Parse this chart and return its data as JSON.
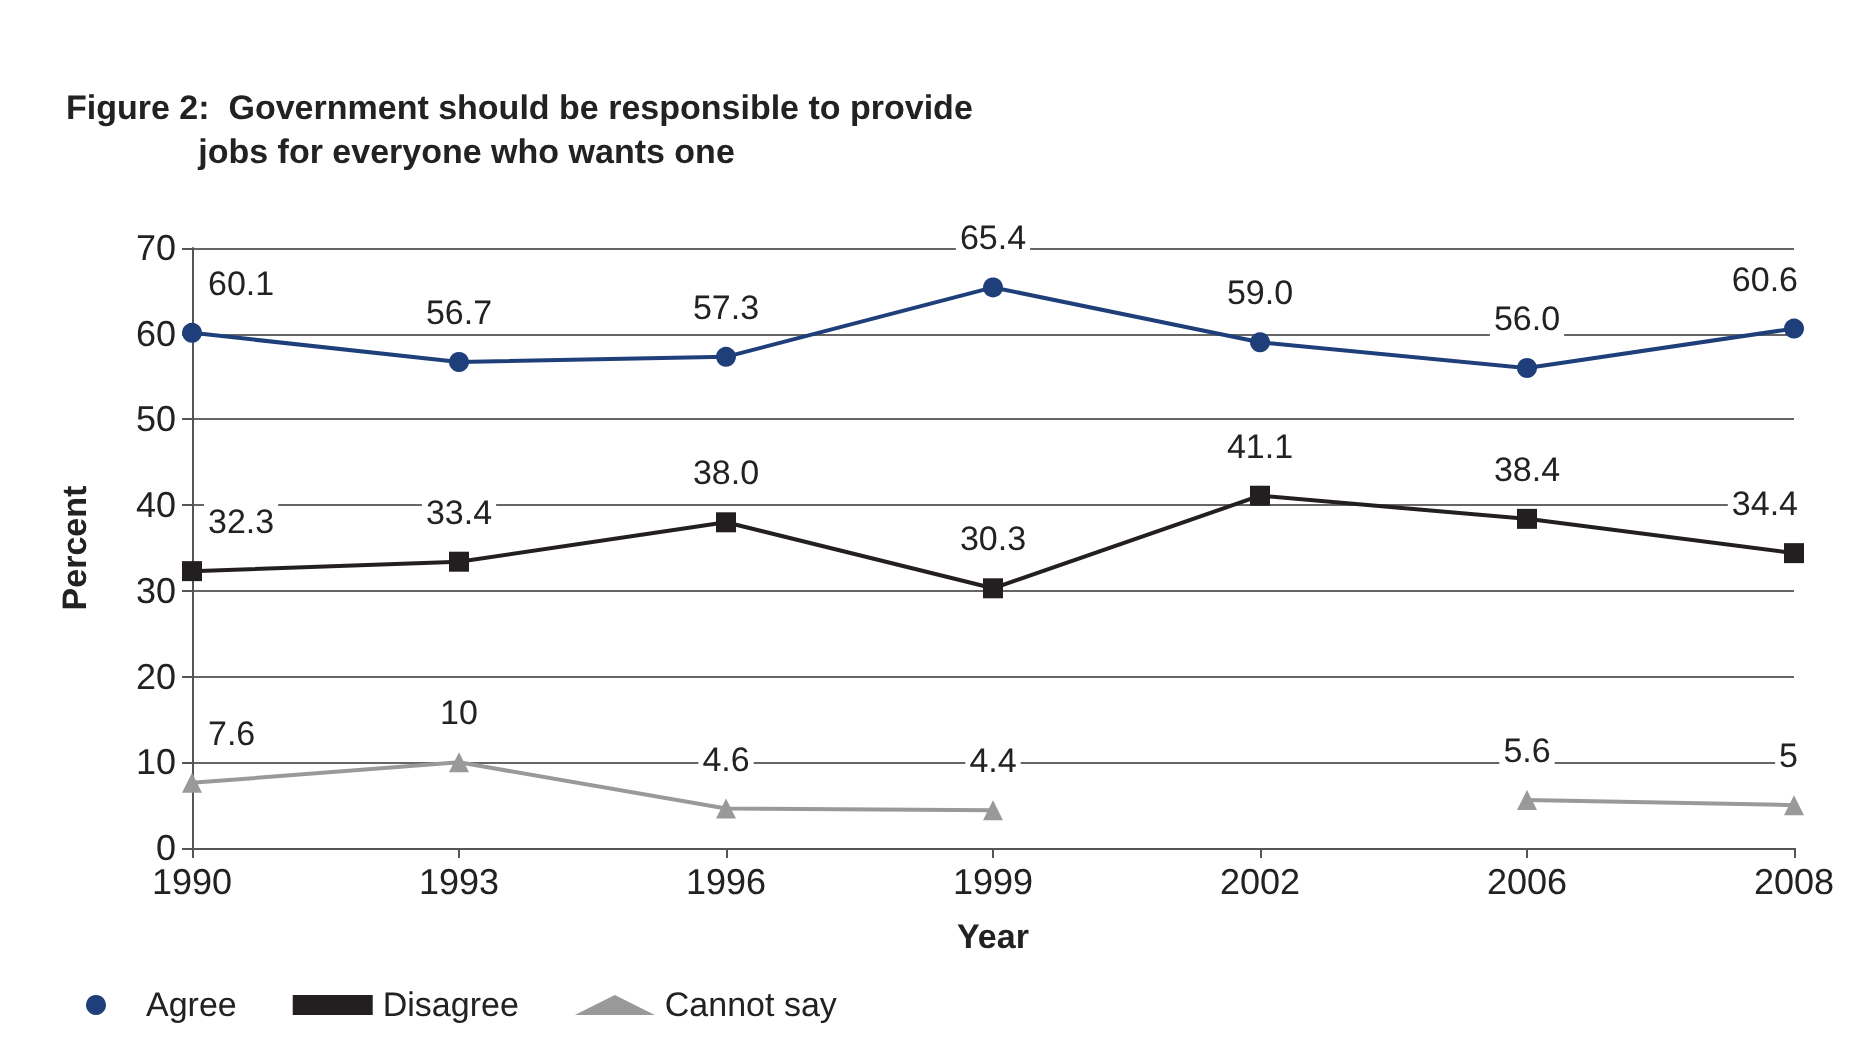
{
  "chart_data": {
    "type": "line",
    "title": "Figure 2:  Government should be responsible to provide\n              jobs for everyone who wants one",
    "xlabel": "Year",
    "ylabel": "Percent",
    "categories": [
      "1990",
      "1993",
      "1996",
      "1999",
      "2002",
      "2006",
      "2008"
    ],
    "series": [
      {
        "name": "Agree",
        "color": "#1f3f7a",
        "marker": "circle",
        "values": [
          60.1,
          56.7,
          57.3,
          65.4,
          59.0,
          56.0,
          60.6
        ]
      },
      {
        "name": "Disagree",
        "color": "#231f20",
        "marker": "square",
        "values": [
          32.3,
          33.4,
          38.0,
          30.3,
          41.1,
          38.4,
          34.4
        ]
      },
      {
        "name": "Cannot say",
        "color": "#999999",
        "marker": "triangle",
        "values": [
          7.6,
          10,
          4.6,
          4.4,
          null,
          5.6,
          5
        ]
      }
    ],
    "value_labels": [
      [
        "60.1",
        "56.7",
        "57.3",
        "65.4",
        "59.0",
        "56.0",
        "60.6"
      ],
      [
        "32.3",
        "33.4",
        "38.0",
        "30.3",
        "41.1",
        "38.4",
        "34.4"
      ],
      [
        "7.6",
        "10",
        "4.6",
        "4.4",
        null,
        "5.6",
        "5"
      ]
    ],
    "ylim": [
      0,
      70
    ],
    "yticks": [
      0,
      10,
      20,
      30,
      40,
      50,
      60,
      70
    ],
    "grid": "y",
    "legend": "bottom",
    "line_style": "solid"
  }
}
